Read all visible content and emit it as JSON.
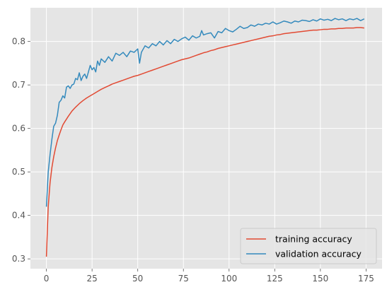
{
  "chart_data": {
    "type": "line",
    "title": "",
    "xlabel": "",
    "ylabel": "",
    "xlim": [
      -8.75,
      183.75
    ],
    "ylim": [
      0.2775,
      0.8775
    ],
    "x_ticks": [
      0,
      25,
      50,
      75,
      100,
      125,
      150,
      175
    ],
    "x_tick_labels": [
      "0",
      "25",
      "50",
      "75",
      "100",
      "125",
      "150",
      "175"
    ],
    "y_ticks": [
      0.3,
      0.4,
      0.5,
      0.6,
      0.7,
      0.8
    ],
    "y_tick_labels": [
      "0.3",
      "0.4",
      "0.5",
      "0.6",
      "0.7",
      "0.8"
    ],
    "grid": true,
    "legend_position": "lower right",
    "background_color": "#e5e5e5",
    "grid_color": "#ffffff",
    "series": [
      {
        "name": "training accuracy",
        "color": "#e24a33",
        "x": [
          0,
          1,
          2,
          3,
          4,
          5,
          6,
          7,
          8,
          9,
          10,
          12,
          14,
          16,
          18,
          20,
          22,
          24,
          26,
          28,
          30,
          32,
          34,
          36,
          38,
          40,
          42,
          44,
          46,
          48,
          50,
          52,
          54,
          56,
          58,
          60,
          62,
          64,
          66,
          68,
          70,
          72,
          74,
          76,
          78,
          80,
          82,
          84,
          86,
          88,
          90,
          92,
          94,
          96,
          98,
          100,
          102,
          104,
          106,
          108,
          110,
          112,
          114,
          116,
          118,
          120,
          122,
          124,
          126,
          128,
          130,
          132,
          134,
          136,
          138,
          140,
          142,
          144,
          146,
          148,
          150,
          152,
          154,
          156,
          158,
          160,
          162,
          164,
          166,
          168,
          170,
          172,
          174
        ],
        "y": [
          0.305,
          0.42,
          0.475,
          0.51,
          0.535,
          0.555,
          0.572,
          0.585,
          0.597,
          0.608,
          0.615,
          0.628,
          0.64,
          0.649,
          0.657,
          0.664,
          0.67,
          0.675,
          0.68,
          0.685,
          0.69,
          0.694,
          0.698,
          0.702,
          0.705,
          0.708,
          0.711,
          0.714,
          0.717,
          0.72,
          0.722,
          0.725,
          0.728,
          0.731,
          0.734,
          0.737,
          0.74,
          0.743,
          0.746,
          0.749,
          0.752,
          0.755,
          0.758,
          0.76,
          0.762,
          0.765,
          0.768,
          0.771,
          0.774,
          0.776,
          0.779,
          0.781,
          0.784,
          0.786,
          0.788,
          0.79,
          0.792,
          0.794,
          0.796,
          0.798,
          0.8,
          0.802,
          0.804,
          0.806,
          0.808,
          0.81,
          0.812,
          0.813,
          0.815,
          0.816,
          0.818,
          0.819,
          0.82,
          0.821,
          0.822,
          0.823,
          0.824,
          0.825,
          0.826,
          0.826,
          0.827,
          0.828,
          0.828,
          0.829,
          0.829,
          0.83,
          0.83,
          0.831,
          0.831,
          0.831,
          0.832,
          0.832,
          0.831
        ]
      },
      {
        "name": "validation accuracy",
        "color": "#348abd",
        "x": [
          0,
          1,
          2,
          3,
          4,
          5,
          6,
          7,
          8,
          9,
          10,
          11,
          12,
          13,
          14,
          15,
          16,
          17,
          18,
          19,
          20,
          21,
          22,
          23,
          24,
          25,
          26,
          27,
          28,
          29,
          30,
          32,
          34,
          36,
          38,
          40,
          42,
          44,
          46,
          48,
          50,
          51,
          52,
          54,
          56,
          58,
          60,
          62,
          64,
          66,
          68,
          70,
          72,
          74,
          76,
          78,
          80,
          82,
          84,
          85,
          86,
          88,
          90,
          92,
          94,
          96,
          98,
          100,
          102,
          104,
          106,
          108,
          110,
          112,
          114,
          116,
          118,
          120,
          122,
          124,
          126,
          128,
          130,
          132,
          134,
          136,
          138,
          140,
          142,
          144,
          146,
          148,
          150,
          152,
          154,
          156,
          158,
          160,
          162,
          164,
          166,
          168,
          170,
          172,
          174
        ],
        "y": [
          0.42,
          0.5,
          0.54,
          0.575,
          0.605,
          0.612,
          0.63,
          0.66,
          0.665,
          0.675,
          0.67,
          0.695,
          0.698,
          0.692,
          0.7,
          0.702,
          0.715,
          0.712,
          0.728,
          0.71,
          0.72,
          0.725,
          0.715,
          0.73,
          0.745,
          0.735,
          0.74,
          0.73,
          0.755,
          0.745,
          0.76,
          0.752,
          0.765,
          0.755,
          0.773,
          0.768,
          0.775,
          0.765,
          0.778,
          0.775,
          0.783,
          0.75,
          0.775,
          0.79,
          0.785,
          0.795,
          0.79,
          0.8,
          0.792,
          0.802,
          0.795,
          0.805,
          0.8,
          0.806,
          0.81,
          0.803,
          0.813,
          0.808,
          0.812,
          0.825,
          0.815,
          0.818,
          0.82,
          0.808,
          0.823,
          0.82,
          0.83,
          0.825,
          0.822,
          0.828,
          0.835,
          0.83,
          0.832,
          0.838,
          0.835,
          0.84,
          0.838,
          0.842,
          0.84,
          0.845,
          0.84,
          0.843,
          0.847,
          0.845,
          0.842,
          0.847,
          0.845,
          0.849,
          0.848,
          0.846,
          0.85,
          0.847,
          0.852,
          0.849,
          0.851,
          0.848,
          0.853,
          0.85,
          0.852,
          0.848,
          0.852,
          0.85,
          0.853,
          0.848,
          0.852
        ]
      }
    ]
  }
}
